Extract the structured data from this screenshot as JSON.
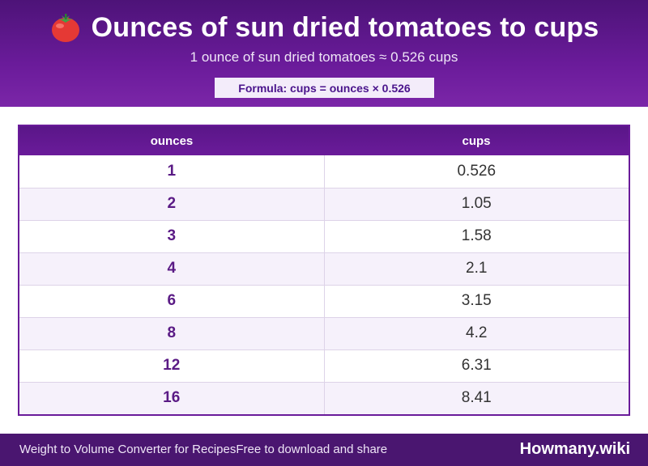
{
  "header": {
    "title": "Ounces of sun dried tomatoes to cups",
    "icon": "tomato-icon",
    "subtitle": "1 ounce of sun dried tomatoes ≈ 0.526 cups",
    "formula": "Formula: cups = ounces × 0.526"
  },
  "table": {
    "columns": [
      "ounces",
      "cups"
    ],
    "rows": [
      {
        "ounces": "1",
        "cups": "0.526"
      },
      {
        "ounces": "2",
        "cups": "1.05"
      },
      {
        "ounces": "3",
        "cups": "1.58"
      },
      {
        "ounces": "4",
        "cups": "2.1"
      },
      {
        "ounces": "6",
        "cups": "3.15"
      },
      {
        "ounces": "8",
        "cups": "4.2"
      },
      {
        "ounces": "12",
        "cups": "6.31"
      },
      {
        "ounces": "16",
        "cups": "8.41"
      }
    ]
  },
  "footer": {
    "left_text_1": "Weight to Volume Converter for Recipes",
    "left_text_2": "Free to download and share",
    "brand": "Howmany.wiki"
  },
  "colors": {
    "header_bg": "#6a1b9a",
    "footer_bg": "#4a1670",
    "accent": "#5a1a85"
  }
}
